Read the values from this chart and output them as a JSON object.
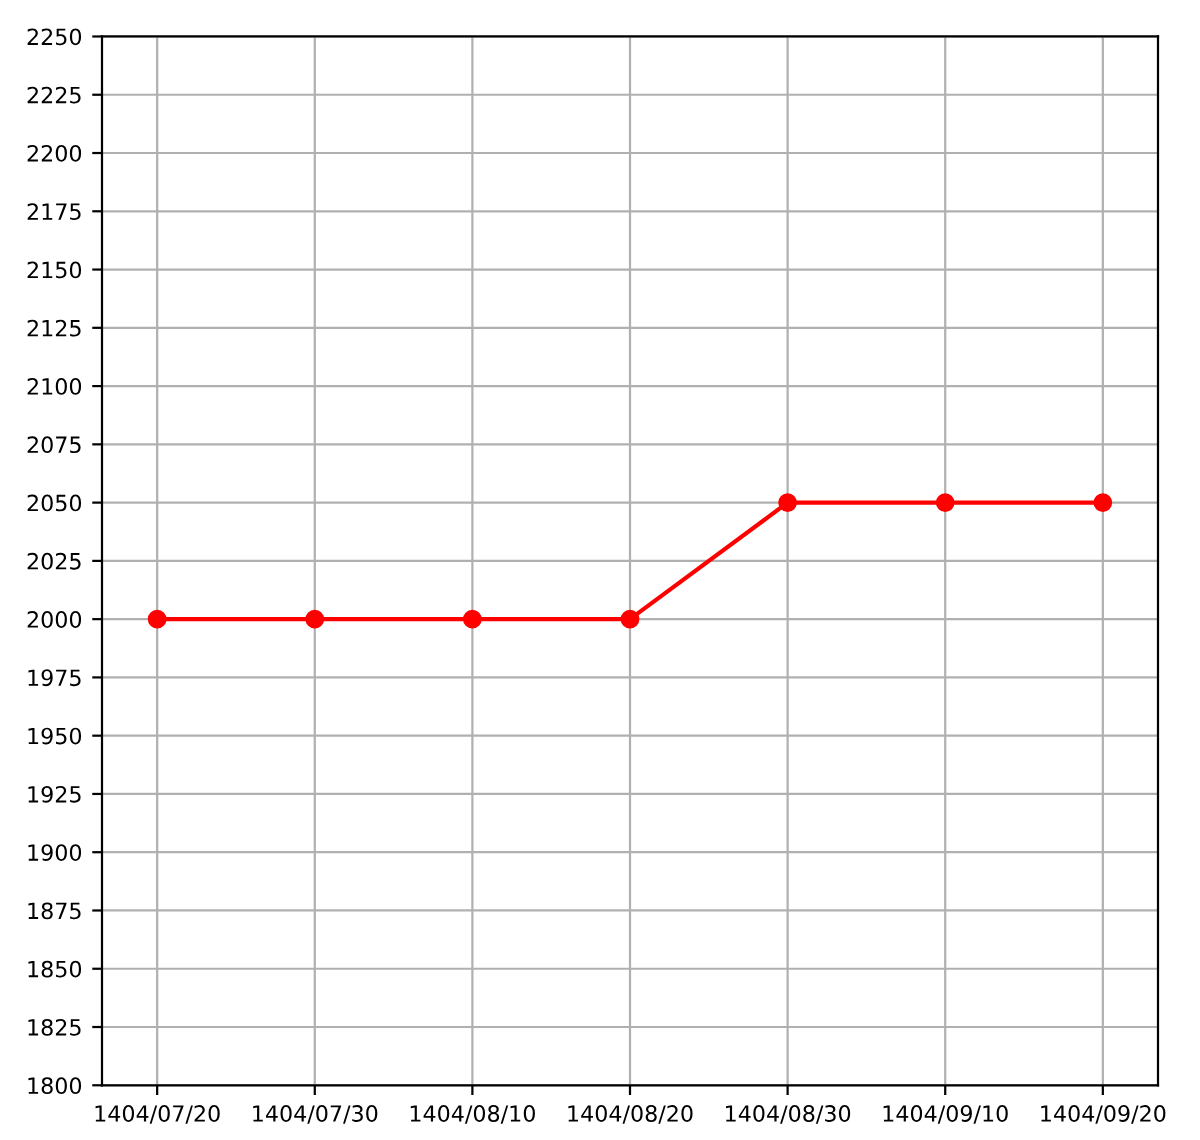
{
  "chart_data": {
    "type": "line",
    "categories": [
      "1404/07/20",
      "1404/07/30",
      "1404/08/10",
      "1404/08/20",
      "1404/08/30",
      "1404/09/10",
      "1404/09/20"
    ],
    "series": [
      {
        "color": "#ff0000",
        "values": [
          2000,
          2000,
          2000,
          2000,
          2050,
          2050,
          2050
        ]
      }
    ],
    "ylim": [
      1800,
      2250
    ],
    "yticks": [
      1800,
      1825,
      1850,
      1875,
      1900,
      1925,
      1950,
      1975,
      2000,
      2025,
      2050,
      2075,
      2100,
      2125,
      2150,
      2175,
      2200,
      2225,
      2250
    ],
    "grid": true,
    "marker": "circle",
    "line_style": "solid"
  }
}
